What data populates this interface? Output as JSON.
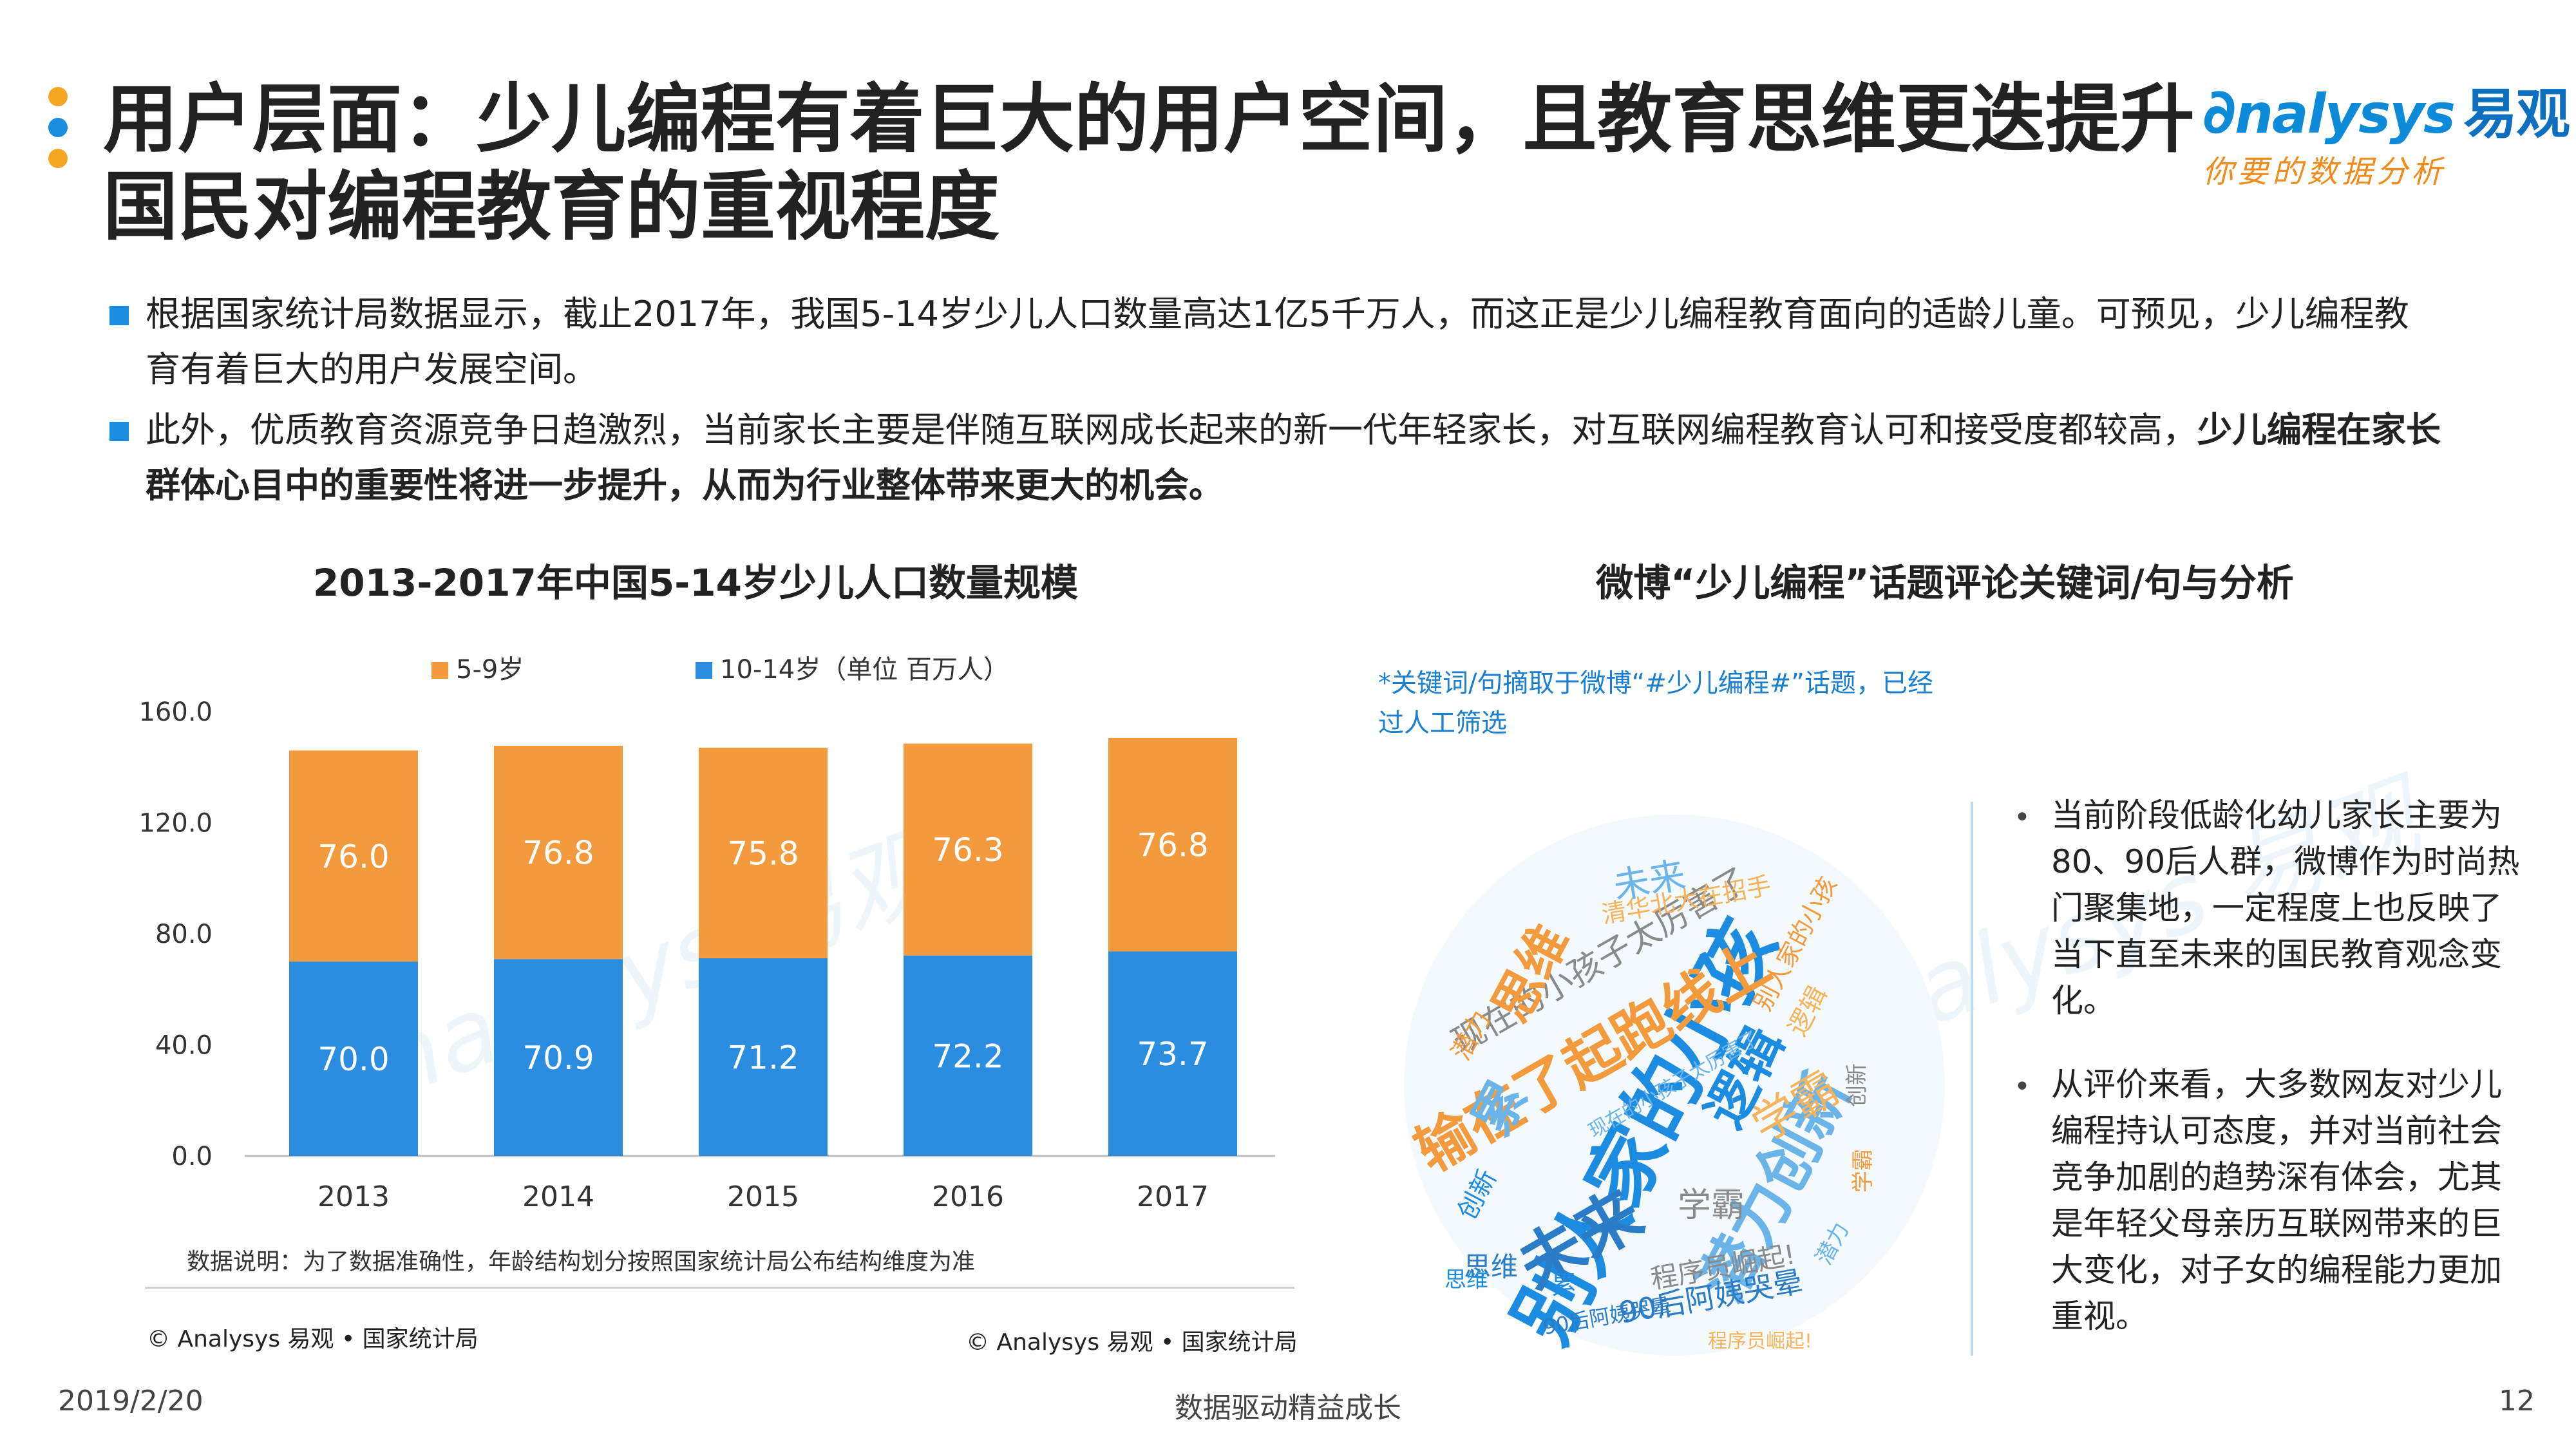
{
  "header": {
    "title_line1": "用户层面：少儿编程有着巨大的用户空间，且教育思维更迭提升",
    "title_line2": "国民对编程教育的重视程度",
    "logo_brand": "nalysys",
    "logo_cn": "易观",
    "logo_slogan": "你要的数据分析",
    "dot_colors": [
      "#f5a623",
      "#1c8ce0",
      "#f5a623"
    ]
  },
  "bullets": [
    {
      "text": "根据国家统计局数据显示，截止2017年，我国5-14岁少儿人口数量高达1亿5千万人，而这正是少儿编程教育面向的适龄儿童。可预见，少儿编程教育有着巨大的用户发展空间。",
      "bold": ""
    },
    {
      "text": "此外，优质教育资源竞争日趋激烈，当前家长主要是伴随互联网成长起来的新一代年轻家长，对互联网编程教育认可和接受度都较高，",
      "bold": "少儿编程在家长群体心目中的重要性将进一步提升，从而为行业整体带来更大的机会。"
    }
  ],
  "left_section_title": "2013-2017年中国5-14岁少儿人口数量规模",
  "right_section_title": "微博“少儿编程”话题评论关键词/句与分析",
  "chart_data": {
    "type": "bar",
    "stacked": true,
    "title": "2013-2017年中国5-14岁少儿人口数量规模",
    "categories": [
      "2013",
      "2014",
      "2015",
      "2016",
      "2017"
    ],
    "series": [
      {
        "name": "10-14岁（单位 百万人）",
        "values": [
          70.0,
          70.9,
          71.2,
          72.2,
          73.7
        ],
        "color": "#2a8de0"
      },
      {
        "name": "5-9岁",
        "values": [
          76.0,
          76.8,
          75.8,
          76.3,
          76.8
        ],
        "color": "#f39a3c"
      }
    ],
    "ylim": [
      0,
      160
    ],
    "yticks": [
      "0.0",
      "40.0",
      "80.0",
      "120.0",
      "160.0"
    ],
    "legend_position": "top",
    "grid": false
  },
  "chart_note": "数据说明：为了数据准确性，年龄结构划分按照国家统计局公布结构维度为准",
  "chart_source": "© Analysys 易观 • 国家统计局",
  "chart_source2": "© Analysys 易观 • 国家统计局",
  "remark": "*关键词/句摘取于微博“#少儿编程#”话题，已经过人工筛选",
  "analysis": [
    "当前阶段低龄化幼儿家长主要为80、90后人群，微博作为时尚热门聚集地，一定程度上也反映了当下直至未来的国民教育观念变化。",
    "从评价来看，大多数网友对少儿编程持认可态度，并对当前社会竞争加剧的趋势深有体会，尤其是年轻父母亲历互联网带来的巨大变化，对子女的编程能力更加重视。"
  ],
  "bullet_dot": "•",
  "wordcloud": {
    "words": [
      "别人家的小孩",
      "输在了起跑线上",
      "潜力创新",
      "现在的小孩子太厉害了",
      "未来",
      "学霸",
      "逻辑",
      "思维",
      "累",
      "程序员崛起!",
      "90后阿姨哭晕",
      "清华北大在招手",
      "创新",
      "潜力",
      "未来",
      "学霸",
      "思维",
      "逻辑",
      "累",
      "别人家的小孩",
      "潜力",
      "创新",
      "90后阿姨哭晕",
      "程序员崛起!",
      "思维",
      "学霸",
      "现在的小孩子太厉害了"
    ],
    "colors": [
      "#1c8ce0",
      "#f39a3c",
      "#6ab4ea",
      "#8a8a8a",
      "#2a7cc7",
      "#f5b35c"
    ]
  },
  "footer": {
    "date": "2019/2/20",
    "center": "数据驱动精益成长",
    "page": "12"
  },
  "watermark": {
    "brand": "nalysys 易观",
    "slogan": "你要的数据分析"
  }
}
